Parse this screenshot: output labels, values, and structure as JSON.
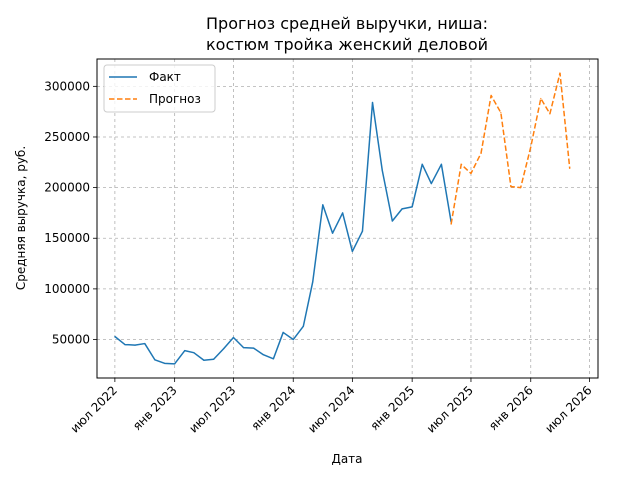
{
  "chart_data": {
    "type": "line",
    "title": [
      "Прогноз средней выручки, ниша:",
      "костюм тройка женский деловой"
    ],
    "xlabel": "Дата",
    "ylabel": "Средняя выручка, руб.",
    "grid": true,
    "legend_position": "top-left",
    "xlim": [
      "2022-05-07",
      "2026-07-27"
    ],
    "ylim": [
      12000,
      327000
    ],
    "x_ticks": [
      {
        "date": "2022-07-01",
        "label": "июл 2022"
      },
      {
        "date": "2023-01-01",
        "label": "янв 2023"
      },
      {
        "date": "2023-07-01",
        "label": "июл 2023"
      },
      {
        "date": "2024-01-01",
        "label": "янв 2024"
      },
      {
        "date": "2024-07-01",
        "label": "июл 2024"
      },
      {
        "date": "2025-01-01",
        "label": "янв 2025"
      },
      {
        "date": "2025-07-01",
        "label": "июл 2025"
      },
      {
        "date": "2026-01-01",
        "label": "янв 2026"
      },
      {
        "date": "2026-07-01",
        "label": "июл 2026"
      }
    ],
    "y_ticks": [
      {
        "value": 50000,
        "label": "50000"
      },
      {
        "value": 100000,
        "label": "100000"
      },
      {
        "value": 150000,
        "label": "150000"
      },
      {
        "value": 200000,
        "label": "200000"
      },
      {
        "value": 250000,
        "label": "250000"
      },
      {
        "value": 300000,
        "label": "300000"
      }
    ],
    "series": [
      {
        "name": "Факт",
        "color": "#1f77b4",
        "style": "solid",
        "points": [
          {
            "x": "2022-07-01",
            "y": 53000
          },
          {
            "x": "2022-08-01",
            "y": 45000
          },
          {
            "x": "2022-09-01",
            "y": 44500
          },
          {
            "x": "2022-10-01",
            "y": 46000
          },
          {
            "x": "2022-11-01",
            "y": 30000
          },
          {
            "x": "2022-12-01",
            "y": 26500
          },
          {
            "x": "2023-01-01",
            "y": 26000
          },
          {
            "x": "2023-02-01",
            "y": 39000
          },
          {
            "x": "2023-03-01",
            "y": 37000
          },
          {
            "x": "2023-04-01",
            "y": 29500
          },
          {
            "x": "2023-05-01",
            "y": 30500
          },
          {
            "x": "2023-06-01",
            "y": 41000
          },
          {
            "x": "2023-07-01",
            "y": 52000
          },
          {
            "x": "2023-08-01",
            "y": 42000
          },
          {
            "x": "2023-09-01",
            "y": 41500
          },
          {
            "x": "2023-10-01",
            "y": 35000
          },
          {
            "x": "2023-11-01",
            "y": 31000
          },
          {
            "x": "2023-12-01",
            "y": 57000
          },
          {
            "x": "2024-01-01",
            "y": 50000
          },
          {
            "x": "2024-02-01",
            "y": 63000
          },
          {
            "x": "2024-03-01",
            "y": 107000
          },
          {
            "x": "2024-04-01",
            "y": 183000
          },
          {
            "x": "2024-05-01",
            "y": 155000
          },
          {
            "x": "2024-06-01",
            "y": 175000
          },
          {
            "x": "2024-07-01",
            "y": 137000
          },
          {
            "x": "2024-08-01",
            "y": 157000
          },
          {
            "x": "2024-09-01",
            "y": 284000
          },
          {
            "x": "2024-10-01",
            "y": 217000
          },
          {
            "x": "2024-11-01",
            "y": 167000
          },
          {
            "x": "2024-12-01",
            "y": 179000
          },
          {
            "x": "2025-01-01",
            "y": 181000
          },
          {
            "x": "2025-02-01",
            "y": 223000
          },
          {
            "x": "2025-03-01",
            "y": 204000
          },
          {
            "x": "2025-04-01",
            "y": 223000
          },
          {
            "x": "2025-05-01",
            "y": 166000
          }
        ]
      },
      {
        "name": "Прогноз",
        "color": "#ff7f0e",
        "style": "dashed",
        "points": [
          {
            "x": "2025-05-01",
            "y": 164000
          },
          {
            "x": "2025-06-01",
            "y": 223000
          },
          {
            "x": "2025-07-01",
            "y": 214000
          },
          {
            "x": "2025-08-01",
            "y": 234000
          },
          {
            "x": "2025-09-01",
            "y": 291000
          },
          {
            "x": "2025-10-01",
            "y": 274000
          },
          {
            "x": "2025-11-01",
            "y": 201000
          },
          {
            "x": "2025-12-01",
            "y": 200000
          },
          {
            "x": "2026-01-01",
            "y": 240000
          },
          {
            "x": "2026-02-01",
            "y": 288000
          },
          {
            "x": "2026-03-01",
            "y": 273000
          },
          {
            "x": "2026-04-01",
            "y": 313000
          },
          {
            "x": "2026-05-01",
            "y": 219000
          }
        ]
      }
    ]
  }
}
